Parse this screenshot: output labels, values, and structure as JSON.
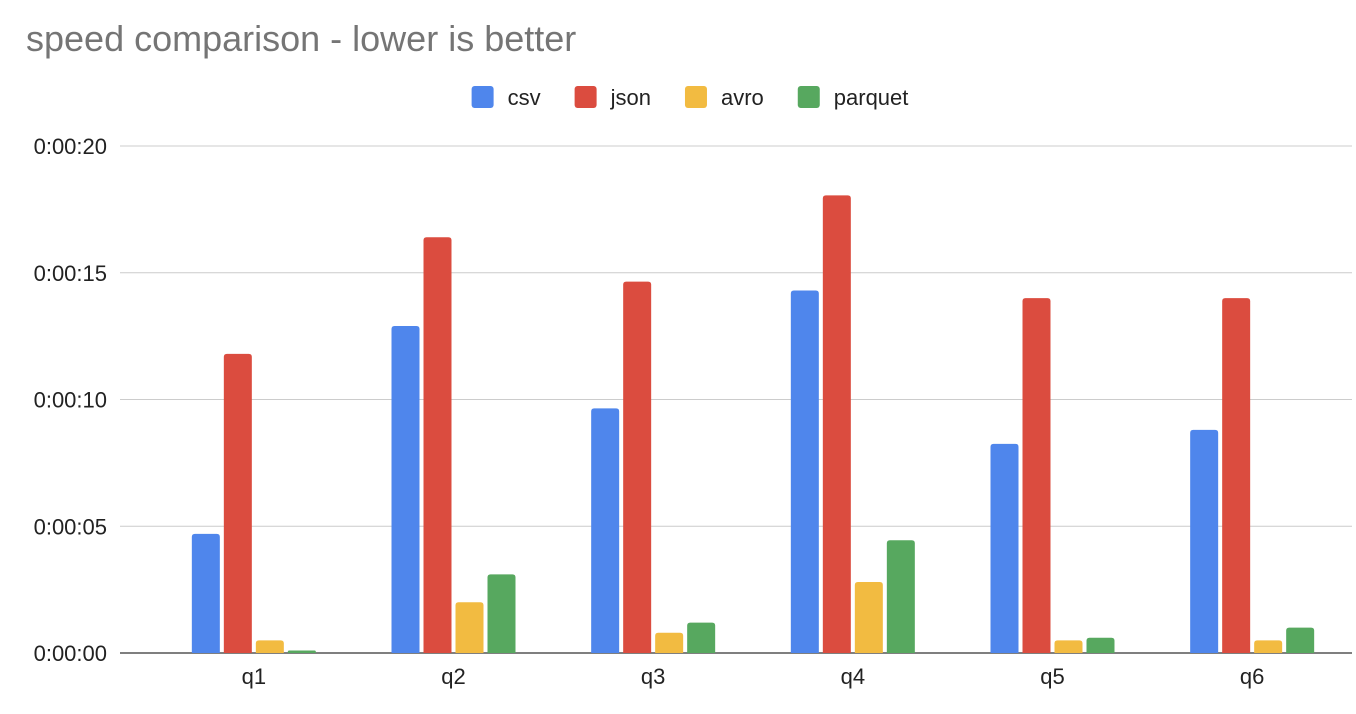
{
  "chart_data": {
    "type": "bar",
    "title": "speed comparison - lower is better",
    "xlabel": "",
    "ylabel": "",
    "categories": [
      "q1",
      "q2",
      "q3",
      "q4",
      "q5",
      "q6"
    ],
    "series": [
      {
        "name": "csv",
        "color": "#4f86ec",
        "values": [
          4.7,
          12.9,
          9.65,
          14.3,
          8.25,
          8.8
        ]
      },
      {
        "name": "json",
        "color": "#db4c3f",
        "values": [
          11.8,
          16.4,
          14.65,
          18.05,
          14.0,
          14.0
        ]
      },
      {
        "name": "avro",
        "color": "#f2bb41",
        "values": [
          0.5,
          2.0,
          0.8,
          2.8,
          0.5,
          0.5
        ]
      },
      {
        "name": "parquet",
        "color": "#57a85f",
        "values": [
          0.1,
          3.1,
          1.2,
          4.45,
          0.6,
          1.0
        ]
      }
    ],
    "value_unit": "seconds",
    "ylim": [
      0,
      20
    ],
    "yticks": [
      0,
      5,
      10,
      15,
      20
    ],
    "ytick_labels": [
      "0:00:00",
      "0:00:05",
      "0:00:10",
      "0:00:15",
      "0:00:20"
    ],
    "grid": true,
    "legend_position": "top-center"
  }
}
